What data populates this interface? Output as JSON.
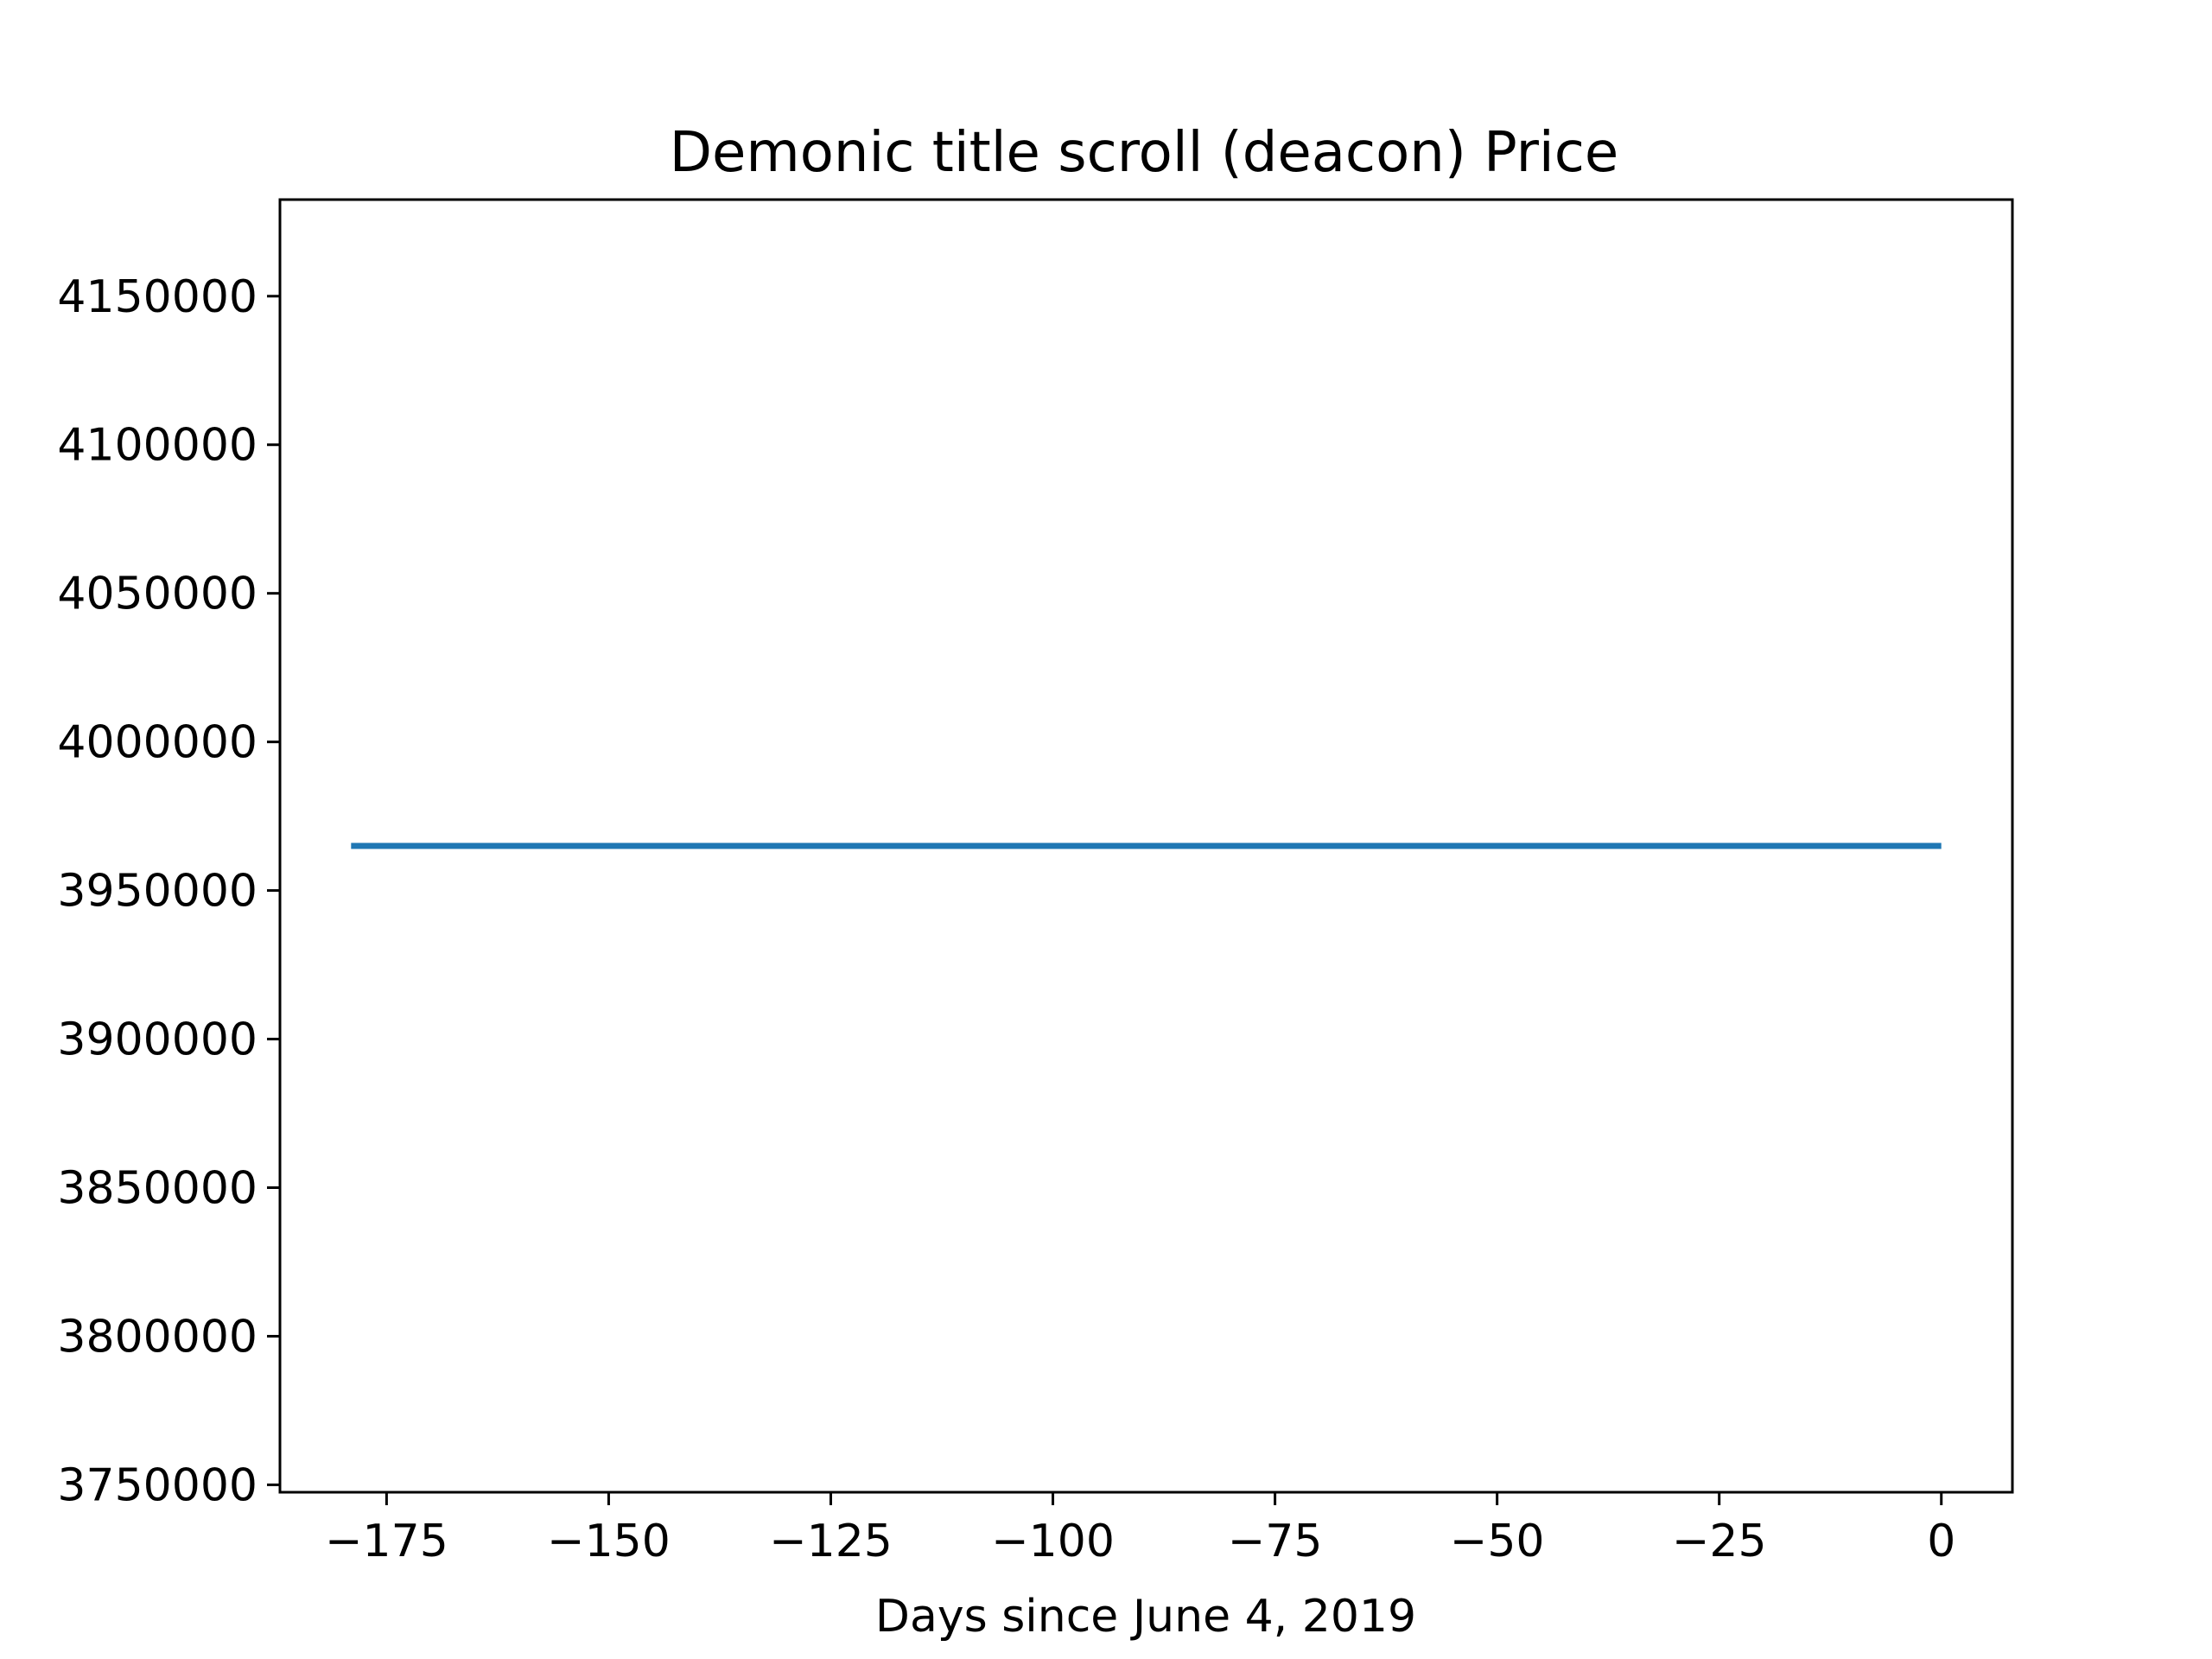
{
  "chart_data": {
    "type": "line",
    "title": "Demonic title scroll (deacon) Price",
    "xlabel": "Days since June 4, 2019",
    "ylabel": "",
    "xlim": [
      -187,
      8
    ],
    "ylim": [
      3747500,
      4182500
    ],
    "xticks": [
      -175,
      -150,
      -125,
      -100,
      -75,
      -50,
      -25,
      0
    ],
    "xtick_labels": [
      "−175",
      "−150",
      "−125",
      "−100",
      "−75",
      "−50",
      "−25",
      "0"
    ],
    "yticks": [
      3750000,
      3800000,
      3850000,
      3900000,
      3950000,
      4000000,
      4050000,
      4100000,
      4150000
    ],
    "ytick_labels": [
      "3750000",
      "3800000",
      "3850000",
      "3900000",
      "3950000",
      "4000000",
      "4050000",
      "4100000",
      "4150000"
    ],
    "grid": false,
    "series": [
      {
        "x": [
          -179,
          0
        ],
        "y": [
          3965000,
          3965000
        ],
        "color": "#1f77b4"
      }
    ]
  }
}
